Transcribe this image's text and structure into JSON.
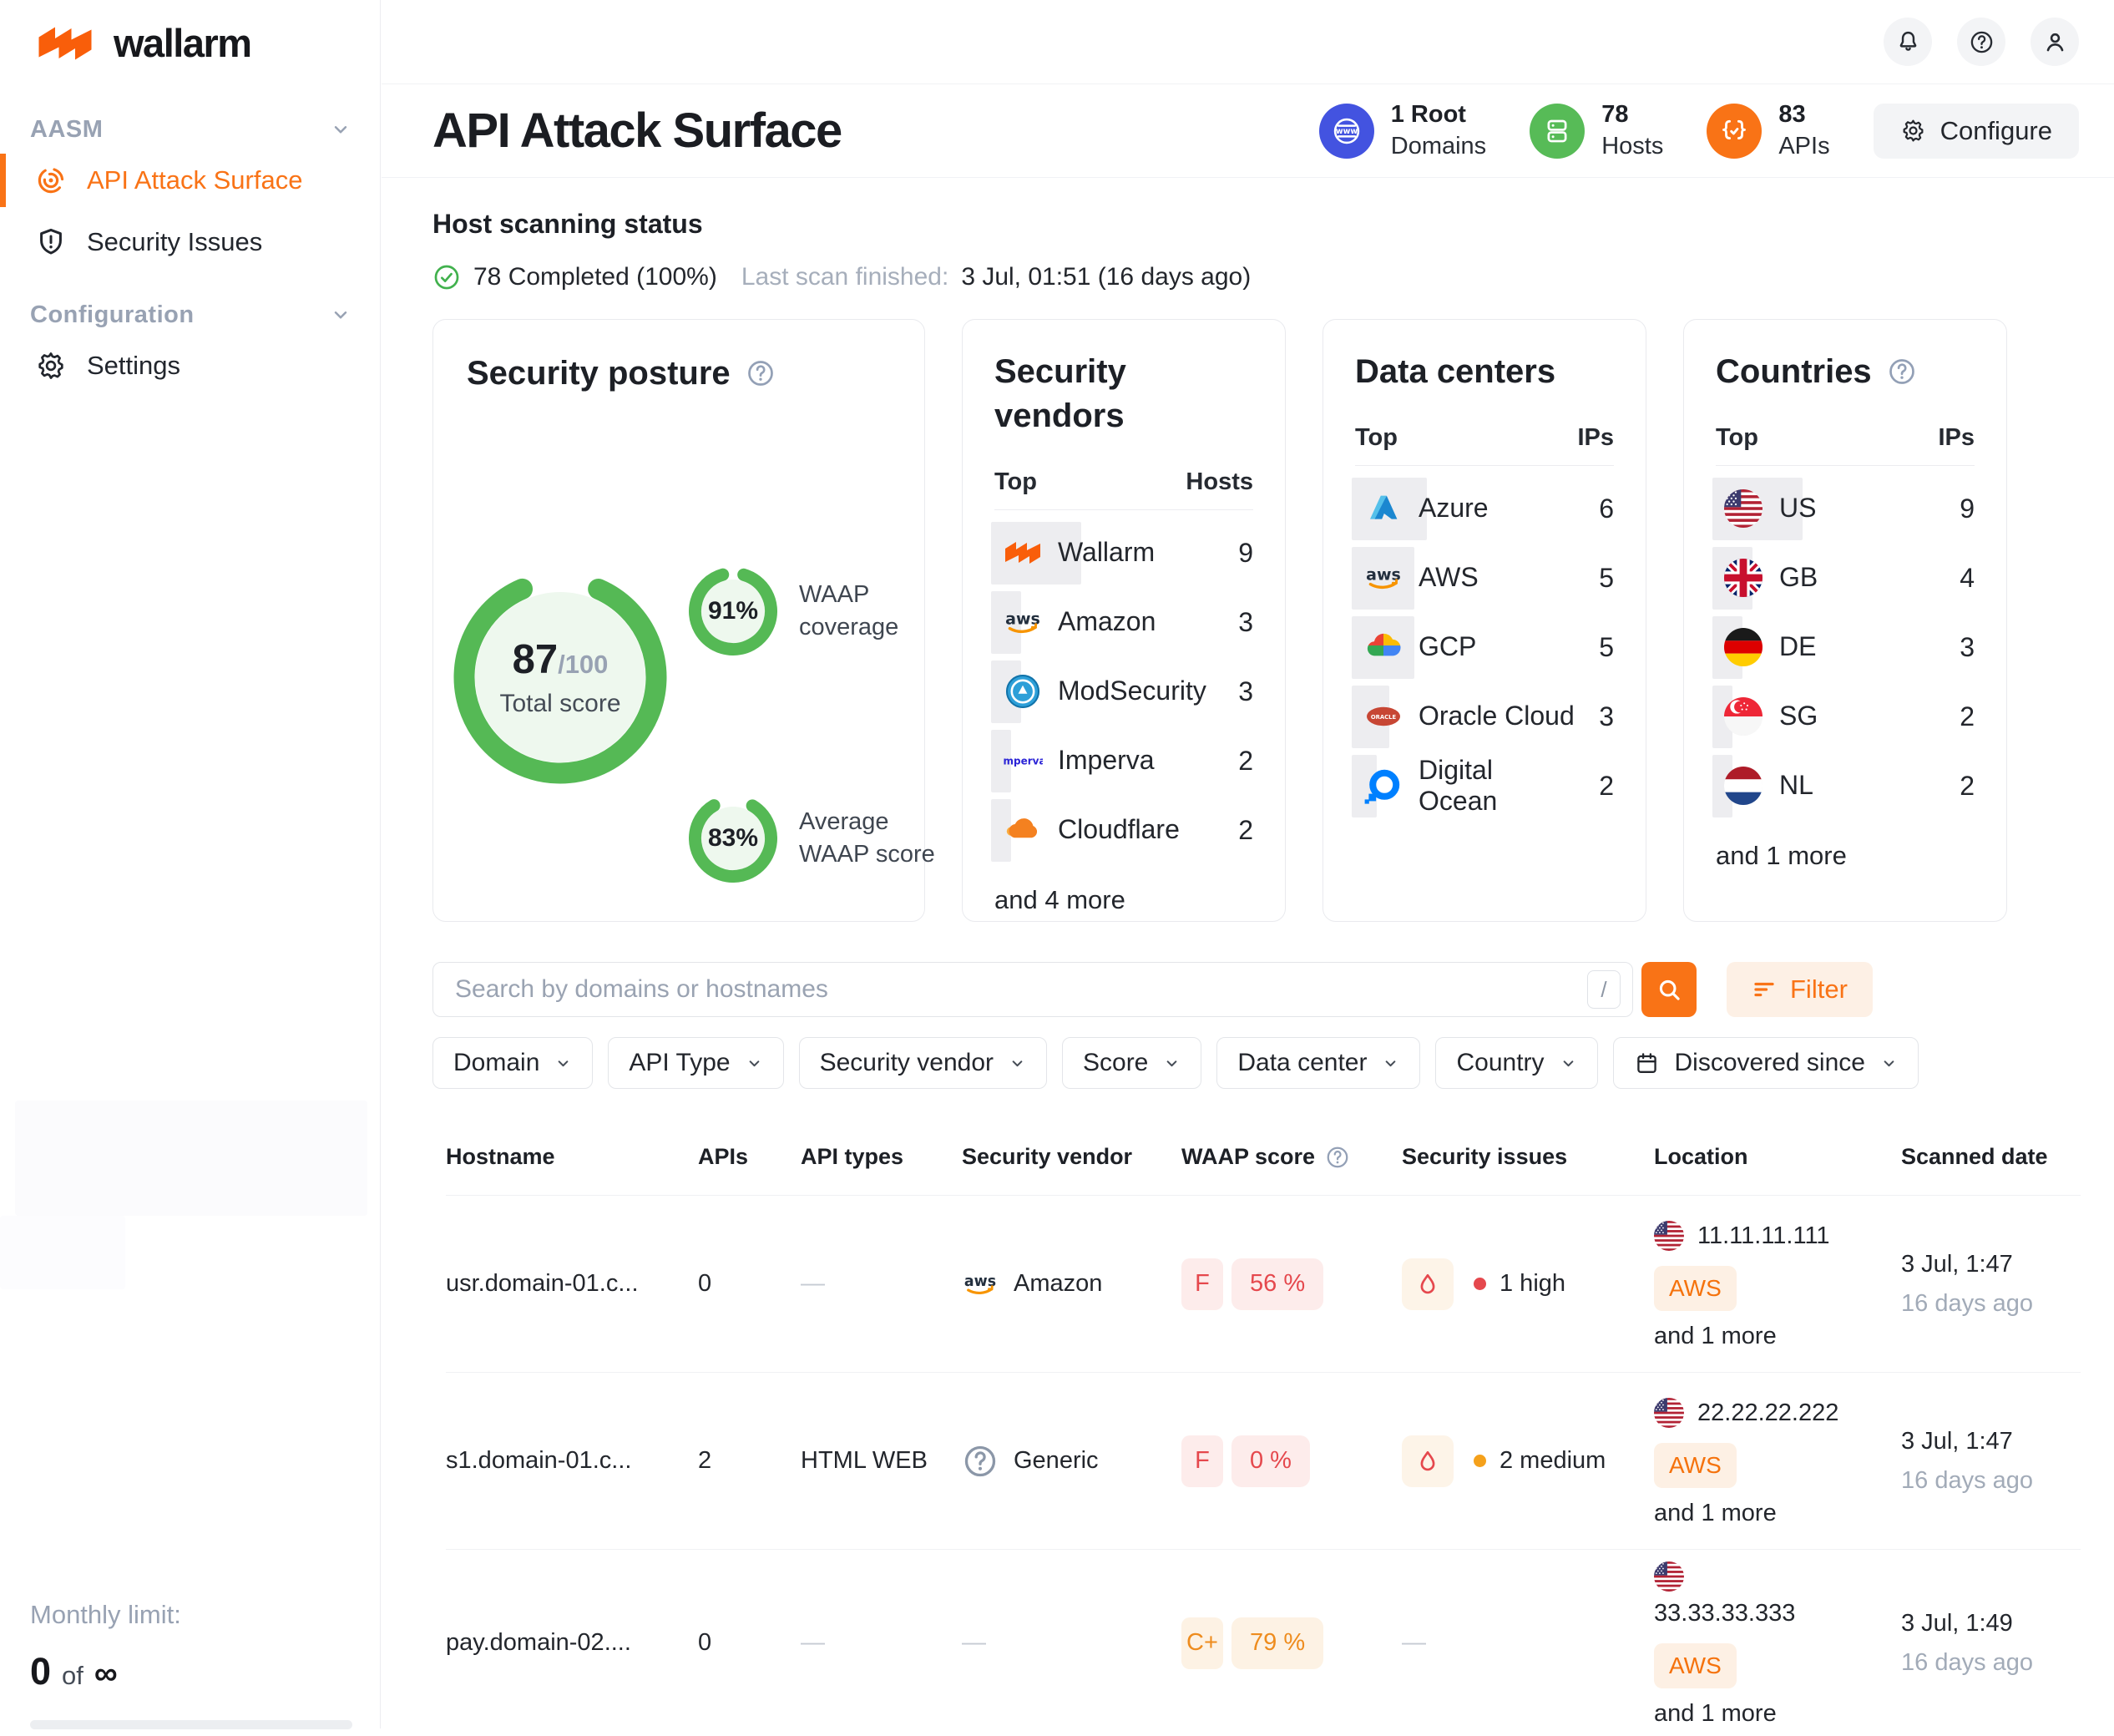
{
  "brand": {
    "name": "wallarm"
  },
  "sidebar": {
    "sections": [
      {
        "label": "AASM",
        "items": [
          {
            "label": "API Attack Surface",
            "icon": "radar",
            "active": true
          },
          {
            "label": "Security Issues",
            "icon": "shield",
            "active": false
          }
        ]
      },
      {
        "label": "Configuration",
        "items": [
          {
            "label": "Settings",
            "icon": "gear",
            "active": false
          }
        ]
      }
    ],
    "monthly_limit": {
      "label": "Monthly limit:",
      "used": "0",
      "connector": "of",
      "total": "∞"
    }
  },
  "topbar": {
    "icons": [
      "bell",
      "help",
      "user"
    ]
  },
  "header": {
    "title": "API Attack Surface",
    "stats": [
      {
        "value": "1 Root",
        "label": "Domains",
        "icon": "globe-www",
        "color": "#4353e0"
      },
      {
        "value": "78",
        "label": "Hosts",
        "icon": "server-stack",
        "color": "#57bb57"
      },
      {
        "value": "83",
        "label": "APIs",
        "icon": "api-braces",
        "color": "#f97316"
      }
    ],
    "configure": "Configure"
  },
  "scan_status": {
    "title": "Host scanning status",
    "completed": "78 Completed (100%)",
    "last_label": "Last scan finished:",
    "last_value": "3 Jul, 01:51 (16 days ago)"
  },
  "security_posture": {
    "title": "Security posture",
    "score": "87",
    "score_max": "/100",
    "score_pct": 87,
    "score_label": "Total score",
    "ring_color": "#55b955",
    "gauges": [
      {
        "value": "91%",
        "pct": 91,
        "label": "WAAP coverage"
      },
      {
        "value": "83%",
        "pct": 83,
        "label": "Average WAAP score"
      }
    ]
  },
  "security_vendors": {
    "title": "Security vendors",
    "col_left": "Top",
    "col_right": "Hosts",
    "rows": [
      {
        "name": "Wallarm",
        "icon": "wallarm",
        "count": 9
      },
      {
        "name": "Amazon",
        "icon": "aws",
        "count": 3
      },
      {
        "name": "ModSecurity",
        "icon": "modsecurity",
        "count": 3
      },
      {
        "name": "Imperva",
        "icon": "imperva",
        "count": 2
      },
      {
        "name": "Cloudflare",
        "icon": "cloudflare",
        "count": 2
      }
    ],
    "more": "and 4 more"
  },
  "data_centers": {
    "title": "Data centers",
    "col_left": "Top",
    "col_right": "IPs",
    "rows": [
      {
        "name": "Azure",
        "icon": "azure",
        "count": 6
      },
      {
        "name": "AWS",
        "icon": "aws",
        "count": 5
      },
      {
        "name": "GCP",
        "icon": "gcp",
        "count": 5
      },
      {
        "name": "Oracle Cloud",
        "icon": "oracle",
        "count": 3
      },
      {
        "name": "Digital Ocean",
        "icon": "digitalocean",
        "count": 2
      }
    ],
    "more": ""
  },
  "countries": {
    "title": "Countries",
    "col_left": "Top",
    "col_right": "IPs",
    "rows": [
      {
        "name": "US",
        "icon": "flag-us",
        "count": 9
      },
      {
        "name": "GB",
        "icon": "flag-gb",
        "count": 4
      },
      {
        "name": "DE",
        "icon": "flag-de",
        "count": 3
      },
      {
        "name": "SG",
        "icon": "flag-sg",
        "count": 2
      },
      {
        "name": "NL",
        "icon": "flag-nl",
        "count": 2
      }
    ],
    "more": "and 1 more"
  },
  "search": {
    "placeholder": "Search by domains or hostnames",
    "shortcut_key": "/",
    "filter_label": "Filter"
  },
  "filters": [
    {
      "label": "Domain"
    },
    {
      "label": "API Type"
    },
    {
      "label": "Security vendor"
    },
    {
      "label": "Score"
    },
    {
      "label": "Data center"
    },
    {
      "label": "Country"
    },
    {
      "label": "Discovered since",
      "icon": "calendar"
    }
  ],
  "table": {
    "columns": [
      "Hostname",
      "APIs",
      "API types",
      "Security vendor",
      "WAAP score",
      "Security issues",
      "Location",
      "Scanned date"
    ],
    "empty_placeholder": "—",
    "rows": [
      {
        "hostname": "usr.domain-01.c...",
        "apis": "0",
        "api_types": "",
        "vendor": {
          "name": "Amazon",
          "icon": "aws"
        },
        "waap": {
          "grade": "F",
          "score": "56 %",
          "tone": "red"
        },
        "issues": {
          "severity": "high",
          "text": "1 high"
        },
        "location": {
          "flag": "flag-us",
          "ip": "11.11.11.111",
          "badge": "AWS",
          "more": "and 1 more",
          "wrap": false
        },
        "scanned": {
          "date": "3 Jul, 1:47",
          "ago": "16 days ago"
        }
      },
      {
        "hostname": "s1.domain-01.c...",
        "apis": "2",
        "api_types": "HTML WEB",
        "vendor": {
          "name": "Generic",
          "icon": "question"
        },
        "waap": {
          "grade": "F",
          "score": "0 %",
          "tone": "red"
        },
        "issues": {
          "severity": "medium",
          "text": "2 medium"
        },
        "location": {
          "flag": "flag-us",
          "ip": "22.22.22.222",
          "badge": "AWS",
          "more": "and 1 more",
          "wrap": false
        },
        "scanned": {
          "date": "3 Jul, 1:47",
          "ago": "16 days ago"
        }
      },
      {
        "hostname": "pay.domain-02....",
        "apis": "0",
        "api_types": "",
        "vendor": null,
        "waap": {
          "grade": "C+",
          "score": "79 %",
          "tone": "orange"
        },
        "issues": null,
        "location": {
          "flag": "flag-us",
          "ip": "33.33.33.333",
          "badge": "AWS",
          "more": "and 1 more",
          "wrap": true
        },
        "scanned": {
          "date": "3 Jul, 1:49",
          "ago": "16 days ago"
        }
      }
    ]
  },
  "colors": {
    "accent": "#f97316",
    "green": "#55b955",
    "blue": "#4353e0",
    "red": "#e5484d",
    "red_bg": "#fdeceb",
    "orange_grade": "#ee8c1e",
    "orange_grade_bg": "#fdf2e4",
    "aws_badge_text": "#f5720c",
    "aws_badge_bg": "#fdf0e4",
    "medium_dot": "#f5a11b"
  }
}
